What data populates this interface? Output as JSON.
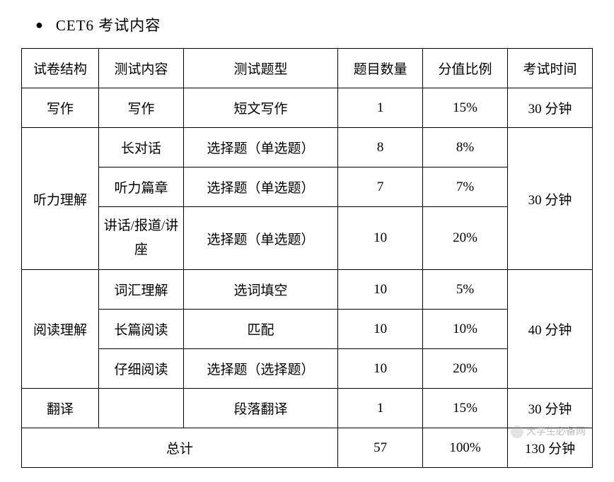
{
  "title": "CET6 考试内容",
  "headers": {
    "structure": "试卷结构",
    "content": "测试内容",
    "type": "测试题型",
    "count": "题目数量",
    "percent": "分值比例",
    "time": "考试时间"
  },
  "sections": {
    "writing": {
      "structure": "写作",
      "content": "写作",
      "type": "短文写作",
      "count": "1",
      "percent": "15%",
      "time": "30 分钟"
    },
    "listening": {
      "structure": "听力理解",
      "row1": {
        "content": "长对话",
        "type": "选择题（单选题）",
        "count": "8",
        "percent": "8%"
      },
      "row2": {
        "content": "听力篇章",
        "type": "选择题（单选题）",
        "count": "7",
        "percent": "7%"
      },
      "row3": {
        "content": "讲话/报道/讲座",
        "type": "选择题（单选题）",
        "count": "10",
        "percent": "20%"
      },
      "time": "30 分钟"
    },
    "reading": {
      "structure": "阅读理解",
      "row1": {
        "content": "词汇理解",
        "type": "选词填空",
        "count": "10",
        "percent": "5%"
      },
      "row2": {
        "content": "长篇阅读",
        "type": "匹配",
        "count": "10",
        "percent": "10%"
      },
      "row3": {
        "content": "仔细阅读",
        "type": "选择题（选择题）",
        "count": "10",
        "percent": "20%"
      },
      "time": "40 分钟"
    },
    "translation": {
      "structure": "翻译",
      "content": "",
      "type": "段落翻译",
      "count": "1",
      "percent": "15%",
      "time": "30 分钟"
    }
  },
  "total": {
    "label": "总计",
    "count": "57",
    "percent": "100%",
    "time": "130 分钟"
  },
  "watermark": "大学生必备网"
}
